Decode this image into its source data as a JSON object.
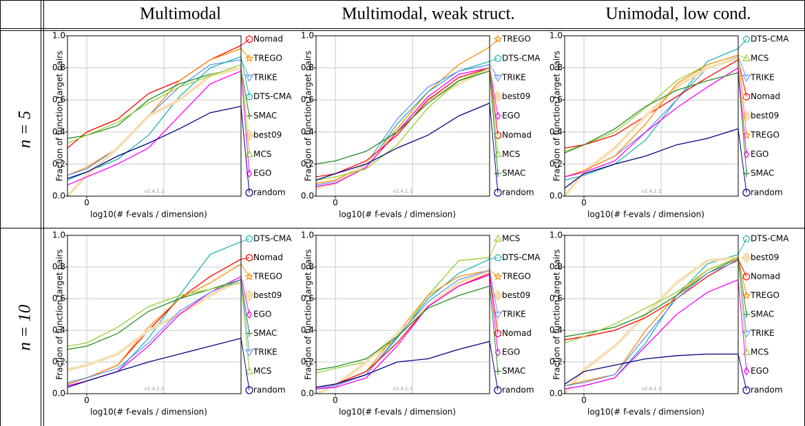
{
  "header": {
    "columns": [
      "Multimodal",
      "Multimodal, weak struct.",
      "Unimodal, low cond."
    ],
    "rows": [
      "n = 5",
      "n = 10"
    ]
  },
  "chart_data": [
    {
      "type": "line",
      "xlabel": "log10(# f-evals / dimension)",
      "ylabel": "Fraction of function,target pairs",
      "watermark": "v2.4.1.1",
      "x": [
        -0.25,
        0,
        0.4,
        0.8,
        1.2,
        1.6,
        2.0
      ],
      "xlim": [
        -0.25,
        2.0
      ],
      "xticks": [
        0
      ],
      "xgrid": [
        0,
        1
      ],
      "ylim": [
        0,
        1
      ],
      "yticks": [
        {
          "value": 0,
          "label": "0.0"
        },
        0.2,
        0.4,
        0.6,
        0.8,
        {
          "value": 1,
          "label": "1.0"
        }
      ],
      "grid": true,
      "series": [
        {
          "name": "Nomad",
          "color": "#ff0000",
          "marker": "hexagon",
          "values": [
            0.3,
            0.4,
            0.48,
            0.64,
            0.72,
            0.85,
            0.94
          ]
        },
        {
          "name": "TREGO",
          "color": "#ff8c00",
          "marker": "star",
          "values": [
            0.13,
            0.18,
            0.3,
            0.5,
            0.72,
            0.85,
            0.92
          ]
        },
        {
          "name": "TRIKE",
          "color": "#6495ed",
          "marker": "tri-down",
          "values": [
            0.13,
            0.17,
            0.3,
            0.5,
            0.68,
            0.82,
            0.85
          ]
        },
        {
          "name": "DTS-CMA",
          "color": "#20b2b2",
          "marker": "pentagon",
          "values": [
            0.1,
            0.15,
            0.23,
            0.38,
            0.62,
            0.8,
            0.87
          ]
        },
        {
          "name": "SMAC",
          "color": "#228b22",
          "marker": "plus",
          "values": [
            0.36,
            0.38,
            0.44,
            0.6,
            0.7,
            0.76,
            0.8
          ]
        },
        {
          "name": "best09",
          "color": "#f5deb3",
          "marker": "big-diamond",
          "values": [
            0.0,
            0.13,
            0.3,
            0.5,
            0.6,
            0.75,
            0.8
          ]
        },
        {
          "name": "MCS",
          "color": "#9acd32",
          "marker": "tri-up",
          "values": [
            0.33,
            0.38,
            0.46,
            0.58,
            0.68,
            0.75,
            0.82
          ]
        },
        {
          "name": "EGO",
          "color": "#ff00ff",
          "marker": "diamond",
          "values": [
            0.07,
            0.12,
            0.2,
            0.3,
            0.5,
            0.7,
            0.78
          ]
        },
        {
          "name": "random",
          "color": "#000080",
          "marker": "circle",
          "values": [
            0.11,
            0.15,
            0.25,
            0.33,
            0.42,
            0.52,
            0.56
          ]
        }
      ]
    },
    {
      "type": "line",
      "xlabel": "log10(# f-evals / dimension)",
      "ylabel": "Fraction of function,target pairs",
      "watermark": "v2.4.1.1",
      "x": [
        -0.25,
        0,
        0.4,
        0.8,
        1.2,
        1.6,
        2.0
      ],
      "xlim": [
        -0.25,
        2.0
      ],
      "xticks": [
        0
      ],
      "xgrid": [
        0,
        1
      ],
      "ylim": [
        0,
        1
      ],
      "yticks": [
        {
          "value": 0,
          "label": "0.0"
        },
        0.2,
        0.4,
        0.6,
        0.8,
        {
          "value": 1,
          "label": "1.0"
        }
      ],
      "grid": true,
      "series": [
        {
          "name": "TREGO",
          "color": "#ff8c00",
          "marker": "star",
          "values": [
            0.08,
            0.1,
            0.2,
            0.42,
            0.65,
            0.82,
            0.93
          ]
        },
        {
          "name": "DTS-CMA",
          "color": "#20b2b2",
          "marker": "pentagon",
          "values": [
            0.06,
            0.08,
            0.18,
            0.45,
            0.65,
            0.78,
            0.84
          ]
        },
        {
          "name": "TRIKE",
          "color": "#6495ed",
          "marker": "tri-down",
          "values": [
            0.07,
            0.09,
            0.2,
            0.48,
            0.68,
            0.78,
            0.82
          ]
        },
        {
          "name": "best09",
          "color": "#f5deb3",
          "marker": "big-diamond",
          "values": [
            0.05,
            0.08,
            0.2,
            0.4,
            0.6,
            0.7,
            0.8
          ]
        },
        {
          "name": "EGO",
          "color": "#ff00ff",
          "marker": "diamond",
          "values": [
            0.06,
            0.08,
            0.18,
            0.4,
            0.62,
            0.76,
            0.8
          ]
        },
        {
          "name": "Nomad",
          "color": "#ff0000",
          "marker": "hexagon",
          "values": [
            0.12,
            0.14,
            0.22,
            0.38,
            0.6,
            0.74,
            0.8
          ]
        },
        {
          "name": "MCS",
          "color": "#9acd32",
          "marker": "tri-up",
          "values": [
            0.1,
            0.12,
            0.17,
            0.32,
            0.55,
            0.72,
            0.8
          ]
        },
        {
          "name": "SMAC",
          "color": "#228b22",
          "marker": "plus",
          "values": [
            0.2,
            0.22,
            0.28,
            0.4,
            0.58,
            0.72,
            0.78
          ]
        },
        {
          "name": "random",
          "color": "#000080",
          "marker": "circle",
          "values": [
            0.1,
            0.14,
            0.2,
            0.3,
            0.38,
            0.5,
            0.58
          ]
        }
      ]
    },
    {
      "type": "line",
      "xlabel": "log10(# f-evals / dimension)",
      "ylabel": "Fraction of function,target pairs",
      "watermark": "v2.4.1.1",
      "x": [
        -0.25,
        0,
        0.4,
        0.8,
        1.2,
        1.6,
        2.0
      ],
      "xlim": [
        -0.25,
        2.0
      ],
      "xticks": [
        0
      ],
      "xgrid": [
        0,
        1
      ],
      "ylim": [
        0,
        1
      ],
      "yticks": [
        {
          "value": 0,
          "label": "0.0"
        },
        0.2,
        0.4,
        0.6,
        0.8,
        {
          "value": 1,
          "label": "1.0"
        }
      ],
      "grid": true,
      "series": [
        {
          "name": "DTS-CMA",
          "color": "#20b2b2",
          "marker": "pentagon",
          "values": [
            0.1,
            0.13,
            0.2,
            0.35,
            0.6,
            0.84,
            0.92
          ]
        },
        {
          "name": "MCS",
          "color": "#9acd32",
          "marker": "tri-up",
          "values": [
            0.28,
            0.32,
            0.4,
            0.55,
            0.72,
            0.82,
            0.88
          ]
        },
        {
          "name": "TRIKE",
          "color": "#6495ed",
          "marker": "tri-down",
          "values": [
            0.12,
            0.16,
            0.25,
            0.4,
            0.6,
            0.8,
            0.87
          ]
        },
        {
          "name": "Nomad",
          "color": "#ff0000",
          "marker": "hexagon",
          "values": [
            0.3,
            0.32,
            0.38,
            0.5,
            0.62,
            0.74,
            0.85
          ]
        },
        {
          "name": "best09",
          "color": "#f5deb3",
          "marker": "big-diamond",
          "values": [
            0.0,
            0.15,
            0.3,
            0.5,
            0.68,
            0.8,
            0.86
          ]
        },
        {
          "name": "TREGO",
          "color": "#ff8c00",
          "marker": "star",
          "values": [
            0.12,
            0.16,
            0.25,
            0.45,
            0.7,
            0.82,
            0.88
          ]
        },
        {
          "name": "EGO",
          "color": "#ff00ff",
          "marker": "diamond",
          "values": [
            0.12,
            0.15,
            0.22,
            0.4,
            0.55,
            0.68,
            0.8
          ]
        },
        {
          "name": "SMAC",
          "color": "#228b22",
          "marker": "plus",
          "values": [
            0.27,
            0.32,
            0.42,
            0.56,
            0.66,
            0.72,
            0.77
          ]
        },
        {
          "name": "random",
          "color": "#000080",
          "marker": "circle",
          "values": [
            0.05,
            0.14,
            0.2,
            0.25,
            0.32,
            0.36,
            0.42
          ]
        }
      ]
    },
    {
      "type": "line",
      "xlabel": "log10(# f-evals / dimension)",
      "ylabel": "Fraction of function,target pairs",
      "watermark": "v2.4.1.1",
      "x": [
        -0.25,
        0,
        0.4,
        0.8,
        1.2,
        1.6,
        2.0
      ],
      "xlim": [
        -0.25,
        2.0
      ],
      "xticks": [
        0
      ],
      "xgrid": [
        0,
        1
      ],
      "ylim": [
        0,
        1
      ],
      "yticks": [
        {
          "value": 0,
          "label": "0.0"
        },
        0.2,
        0.4,
        0.6,
        0.8,
        {
          "value": 1,
          "label": "1.0"
        }
      ],
      "grid": true,
      "series": [
        {
          "name": "DTS-CMA",
          "color": "#20b2b2",
          "marker": "pentagon",
          "values": [
            0.05,
            0.08,
            0.14,
            0.35,
            0.62,
            0.88,
            0.96
          ]
        },
        {
          "name": "Nomad",
          "color": "#ff0000",
          "marker": "hexagon",
          "values": [
            0.06,
            0.1,
            0.18,
            0.4,
            0.6,
            0.74,
            0.85
          ]
        },
        {
          "name": "TREGO",
          "color": "#ff8c00",
          "marker": "star",
          "values": [
            0.06,
            0.1,
            0.18,
            0.42,
            0.6,
            0.7,
            0.82
          ]
        },
        {
          "name": "best09",
          "color": "#f5deb3",
          "marker": "big-diamond",
          "values": [
            0.15,
            0.18,
            0.25,
            0.4,
            0.5,
            0.62,
            0.72
          ]
        },
        {
          "name": "EGO",
          "color": "#ff00ff",
          "marker": "diamond",
          "values": [
            0.05,
            0.08,
            0.14,
            0.3,
            0.5,
            0.64,
            0.74
          ]
        },
        {
          "name": "SMAC",
          "color": "#228b22",
          "marker": "plus",
          "values": [
            0.28,
            0.3,
            0.38,
            0.52,
            0.6,
            0.66,
            0.72
          ]
        },
        {
          "name": "TRIKE",
          "color": "#6495ed",
          "marker": "tri-down",
          "values": [
            0.07,
            0.1,
            0.16,
            0.32,
            0.52,
            0.64,
            0.72
          ]
        },
        {
          "name": "MCS",
          "color": "#9acd32",
          "marker": "tri-up",
          "values": [
            0.3,
            0.32,
            0.42,
            0.55,
            0.62,
            0.66,
            0.7
          ]
        },
        {
          "name": "random",
          "color": "#000080",
          "marker": "circle",
          "values": [
            0.04,
            0.08,
            0.14,
            0.2,
            0.25,
            0.3,
            0.35
          ]
        }
      ]
    },
    {
      "type": "line",
      "xlabel": "log10(# f-evals / dimension)",
      "ylabel": "Fraction of function,target pairs",
      "watermark": "v2.4.1.1",
      "x": [
        -0.25,
        0,
        0.4,
        0.8,
        1.2,
        1.6,
        2.0
      ],
      "xlim": [
        -0.25,
        2.0
      ],
      "xticks": [
        0
      ],
      "xgrid": [
        0,
        1
      ],
      "ylim": [
        0,
        1
      ],
      "yticks": [
        {
          "value": 0,
          "label": "0.0"
        },
        0.2,
        0.4,
        0.6,
        0.8,
        {
          "value": 1,
          "label": "1.0"
        }
      ],
      "grid": true,
      "series": [
        {
          "name": "MCS",
          "color": "#9acd32",
          "marker": "tri-up",
          "values": [
            0.13,
            0.16,
            0.2,
            0.35,
            0.62,
            0.84,
            0.86
          ]
        },
        {
          "name": "DTS-CMA",
          "color": "#20b2b2",
          "marker": "pentagon",
          "values": [
            0.03,
            0.05,
            0.12,
            0.35,
            0.6,
            0.76,
            0.85
          ]
        },
        {
          "name": "TREGO",
          "color": "#ff8c00",
          "marker": "star",
          "values": [
            0.04,
            0.06,
            0.14,
            0.38,
            0.62,
            0.74,
            0.78
          ]
        },
        {
          "name": "best09",
          "color": "#f5deb3",
          "marker": "big-diamond",
          "values": [
            0.0,
            0.05,
            0.2,
            0.38,
            0.55,
            0.7,
            0.78
          ]
        },
        {
          "name": "TRIKE",
          "color": "#6495ed",
          "marker": "tri-down",
          "values": [
            0.03,
            0.05,
            0.12,
            0.36,
            0.58,
            0.72,
            0.78
          ]
        },
        {
          "name": "Nomad",
          "color": "#ff0000",
          "marker": "hexagon",
          "values": [
            0.04,
            0.06,
            0.14,
            0.32,
            0.55,
            0.68,
            0.76
          ]
        },
        {
          "name": "EGO",
          "color": "#ff00ff",
          "marker": "diamond",
          "values": [
            0.03,
            0.04,
            0.1,
            0.3,
            0.55,
            0.68,
            0.75
          ]
        },
        {
          "name": "SMAC",
          "color": "#228b22",
          "marker": "plus",
          "values": [
            0.15,
            0.17,
            0.22,
            0.36,
            0.54,
            0.62,
            0.68
          ]
        },
        {
          "name": "random",
          "color": "#000080",
          "marker": "circle",
          "values": [
            0.04,
            0.06,
            0.12,
            0.2,
            0.22,
            0.28,
            0.33
          ]
        }
      ]
    },
    {
      "type": "line",
      "xlabel": "log10(# f-evals / dimension)",
      "ylabel": "Fraction of function,target pairs",
      "watermark": "v2.4.1.1",
      "x": [
        -0.25,
        0,
        0.4,
        0.8,
        1.2,
        1.6,
        2.0
      ],
      "xlim": [
        -0.25,
        2.0
      ],
      "xticks": [
        0
      ],
      "xgrid": [
        0,
        1
      ],
      "ylim": [
        0,
        1
      ],
      "yticks": [
        {
          "value": 0,
          "label": "0.0"
        },
        0.2,
        0.4,
        0.6,
        0.8,
        {
          "value": 1,
          "label": "1.0"
        }
      ],
      "grid": true,
      "series": [
        {
          "name": "DTS-CMA",
          "color": "#20b2b2",
          "marker": "pentagon",
          "values": [
            0.03,
            0.05,
            0.1,
            0.32,
            0.62,
            0.82,
            0.88
          ]
        },
        {
          "name": "best09",
          "color": "#f5deb3",
          "marker": "big-diamond",
          "values": [
            0.0,
            0.15,
            0.3,
            0.5,
            0.7,
            0.84,
            0.86
          ]
        },
        {
          "name": "Nomad",
          "color": "#ff0000",
          "marker": "hexagon",
          "values": [
            0.34,
            0.36,
            0.4,
            0.48,
            0.6,
            0.74,
            0.85
          ]
        },
        {
          "name": "TREGO",
          "color": "#ff8c00",
          "marker": "star",
          "values": [
            0.05,
            0.08,
            0.12,
            0.4,
            0.62,
            0.78,
            0.86
          ]
        },
        {
          "name": "SMAC",
          "color": "#228b22",
          "marker": "plus",
          "values": [
            0.36,
            0.38,
            0.42,
            0.5,
            0.62,
            0.76,
            0.86
          ]
        },
        {
          "name": "TRIKE",
          "color": "#6495ed",
          "marker": "tri-down",
          "values": [
            0.05,
            0.07,
            0.12,
            0.36,
            0.6,
            0.76,
            0.84
          ]
        },
        {
          "name": "MCS",
          "color": "#9acd32",
          "marker": "tri-up",
          "values": [
            0.32,
            0.36,
            0.44,
            0.54,
            0.64,
            0.78,
            0.86
          ]
        },
        {
          "name": "EGO",
          "color": "#ff00ff",
          "marker": "diamond",
          "values": [
            0.03,
            0.05,
            0.1,
            0.3,
            0.5,
            0.64,
            0.72
          ]
        },
        {
          "name": "random",
          "color": "#000080",
          "marker": "circle",
          "values": [
            0.06,
            0.14,
            0.18,
            0.22,
            0.24,
            0.25,
            0.25
          ]
        }
      ]
    }
  ]
}
